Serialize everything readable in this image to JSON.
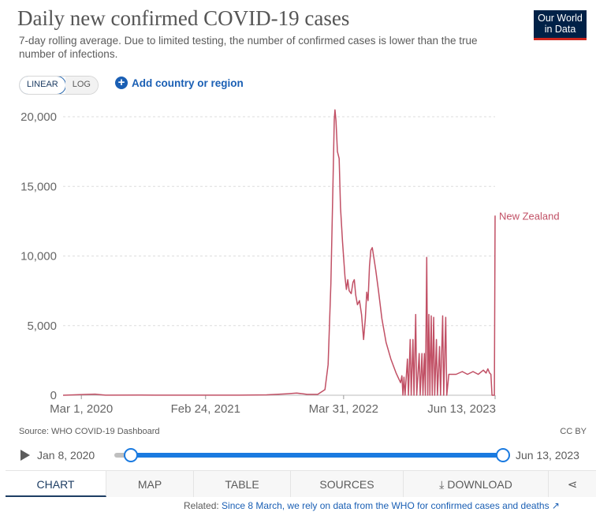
{
  "header": {
    "title": "Daily new confirmed COVID-19 cases",
    "subtitle": "7-day rolling average. Due to limited testing, the number of confirmed cases is lower than the true number of infections.",
    "logo_line1": "Our World",
    "logo_line2": "in Data"
  },
  "controls": {
    "linear_label": "LINEAR",
    "log_label": "LOG",
    "add_label": "Add country or region"
  },
  "chart_data": {
    "type": "line",
    "title": "Daily new confirmed COVID-19 cases",
    "xlabel": "",
    "ylabel": "",
    "x_ticks": [
      "Mar 1, 2020",
      "Feb 24, 2021",
      "Mar 31, 2022",
      "Jun 13, 2023"
    ],
    "y_ticks": [
      "0",
      "5,000",
      "10,000",
      "15,000",
      "20,000"
    ],
    "xlim": [
      "2020-01-08",
      "2023-06-13"
    ],
    "ylim": [
      0,
      20000
    ],
    "grid": true,
    "series": [
      {
        "name": "New Zealand",
        "color": "#c15065",
        "points": [
          [
            "2020-01-08",
            0
          ],
          [
            "2020-03-20",
            60
          ],
          [
            "2020-04-10",
            80
          ],
          [
            "2020-05-10",
            5
          ],
          [
            "2020-08-20",
            10
          ],
          [
            "2020-10-01",
            5
          ],
          [
            "2021-01-01",
            5
          ],
          [
            "2021-06-01",
            5
          ],
          [
            "2021-08-20",
            30
          ],
          [
            "2021-10-15",
            100
          ],
          [
            "2021-11-15",
            160
          ],
          [
            "2021-12-15",
            60
          ],
          [
            "2022-01-15",
            60
          ],
          [
            "2022-02-05",
            400
          ],
          [
            "2022-02-14",
            2200
          ],
          [
            "2022-02-22",
            8000
          ],
          [
            "2022-02-28",
            15000
          ],
          [
            "2022-03-04",
            19800
          ],
          [
            "2022-03-06",
            20500
          ],
          [
            "2022-03-09",
            19700
          ],
          [
            "2022-03-13",
            17500
          ],
          [
            "2022-03-18",
            17000
          ],
          [
            "2022-03-22",
            13500
          ],
          [
            "2022-03-28",
            11000
          ],
          [
            "2022-04-04",
            8500
          ],
          [
            "2022-04-08",
            7600
          ],
          [
            "2022-04-12",
            8300
          ],
          [
            "2022-04-16",
            7500
          ],
          [
            "2022-04-22",
            7300
          ],
          [
            "2022-04-27",
            8100
          ],
          [
            "2022-05-01",
            8300
          ],
          [
            "2022-05-05",
            7200
          ],
          [
            "2022-05-10",
            6500
          ],
          [
            "2022-05-16",
            6800
          ],
          [
            "2022-05-22",
            5800
          ],
          [
            "2022-05-28",
            4000
          ],
          [
            "2022-06-02",
            5500
          ],
          [
            "2022-06-06",
            7400
          ],
          [
            "2022-06-10",
            6800
          ],
          [
            "2022-06-14",
            9300
          ],
          [
            "2022-06-18",
            10400
          ],
          [
            "2022-06-22",
            10600
          ],
          [
            "2022-06-26",
            10000
          ],
          [
            "2022-07-02",
            9000
          ],
          [
            "2022-07-10",
            7500
          ],
          [
            "2022-07-20",
            5500
          ],
          [
            "2022-08-01",
            3800
          ],
          [
            "2022-08-15",
            2600
          ],
          [
            "2022-08-30",
            1600
          ],
          [
            "2022-09-12",
            900
          ],
          [
            "2022-09-16",
            1400
          ],
          [
            "2022-09-19",
            0
          ],
          [
            "2022-09-22",
            1300
          ],
          [
            "2022-09-25",
            0
          ],
          [
            "2022-10-02",
            2600
          ],
          [
            "2022-10-05",
            0
          ],
          [
            "2022-10-10",
            4000
          ],
          [
            "2022-10-13",
            0
          ],
          [
            "2022-10-18",
            4000
          ],
          [
            "2022-10-21",
            0
          ],
          [
            "2022-10-26",
            5800
          ],
          [
            "2022-10-29",
            0
          ],
          [
            "2022-11-05",
            3000
          ],
          [
            "2022-11-08",
            0
          ],
          [
            "2022-11-13",
            3000
          ],
          [
            "2022-11-16",
            0
          ],
          [
            "2022-11-20",
            3000
          ],
          [
            "2022-11-23",
            0
          ],
          [
            "2022-11-27",
            9900
          ],
          [
            "2022-11-30",
            0
          ],
          [
            "2022-12-03",
            5800
          ],
          [
            "2022-12-06",
            0
          ],
          [
            "2022-12-10",
            5700
          ],
          [
            "2022-12-13",
            0
          ],
          [
            "2022-12-17",
            5600
          ],
          [
            "2022-12-20",
            0
          ],
          [
            "2022-12-25",
            4000
          ],
          [
            "2022-12-28",
            0
          ],
          [
            "2023-01-03",
            3500
          ],
          [
            "2023-01-06",
            0
          ],
          [
            "2023-01-12",
            5700
          ],
          [
            "2023-01-15",
            0
          ],
          [
            "2023-01-21",
            5600
          ],
          [
            "2023-01-24",
            0
          ],
          [
            "2023-01-30",
            1500
          ],
          [
            "2023-02-20",
            1500
          ],
          [
            "2023-03-10",
            1700
          ],
          [
            "2023-03-25",
            1500
          ],
          [
            "2023-04-10",
            1700
          ],
          [
            "2023-04-25",
            1500
          ],
          [
            "2023-05-10",
            1800
          ],
          [
            "2023-05-18",
            1600
          ],
          [
            "2023-05-23",
            1900
          ],
          [
            "2023-05-28",
            1600
          ],
          [
            "2023-06-01",
            1500
          ],
          [
            "2023-06-04",
            0
          ],
          [
            "2023-06-08",
            0
          ],
          [
            "2023-06-11",
            0
          ],
          [
            "2023-06-13",
            12900
          ]
        ]
      }
    ],
    "end_label": "New Zealand"
  },
  "footer": {
    "source": "Source: WHO COVID-19 Dashboard",
    "license": "CC BY"
  },
  "timeline": {
    "start_label": "Jan 8, 2020",
    "end_label": "Jun 13, 2023",
    "start_fraction": 0.0,
    "end_fraction": 1.0
  },
  "tabs": [
    {
      "label": "CHART",
      "active": true
    },
    {
      "label": "MAP",
      "active": false
    },
    {
      "label": "TABLE",
      "active": false
    },
    {
      "label": "SOURCES",
      "active": false
    },
    {
      "label": "DOWNLOAD",
      "active": false
    }
  ],
  "related": {
    "prefix": "Related:",
    "link": "Since 8 March, we rely on data from the WHO for confirmed cases and deaths"
  },
  "icons": {
    "add": "plus-circle-icon",
    "play": "play-icon",
    "download": "download-icon",
    "share": "share-icon",
    "external": "external-link-icon"
  }
}
